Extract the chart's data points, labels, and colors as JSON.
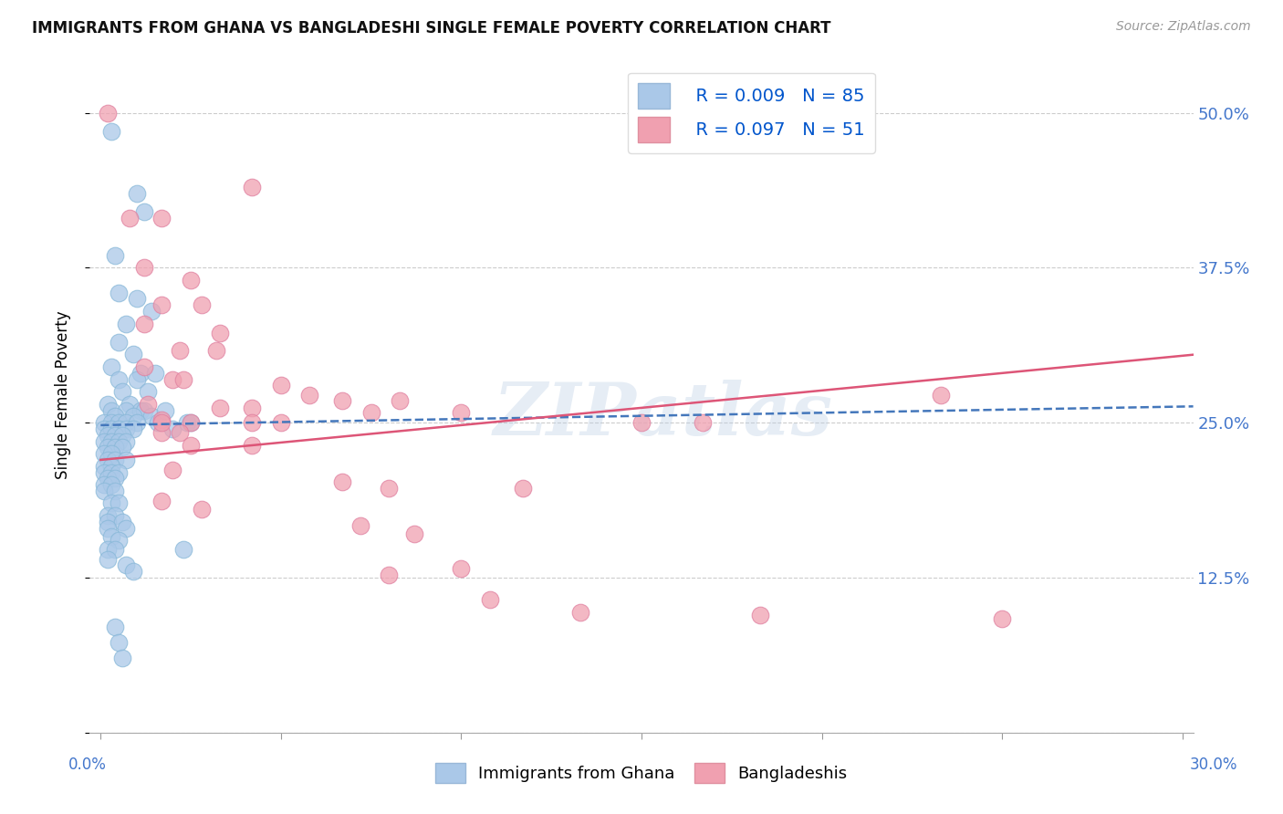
{
  "title": "IMMIGRANTS FROM GHANA VS BANGLADESHI SINGLE FEMALE POVERTY CORRELATION CHART",
  "source": "Source: ZipAtlas.com",
  "ylabel": "Single Female Poverty",
  "yticks": [
    0.0,
    0.125,
    0.25,
    0.375,
    0.5
  ],
  "ytick_labels": [
    "",
    "12.5%",
    "25.0%",
    "37.5%",
    "50.0%"
  ],
  "watermark": "ZIPatlas",
  "ghana_scatter_color": "#aac8e8",
  "bangladesh_scatter_color": "#f0a0b0",
  "ghana_line_color": "#4477bb",
  "bangladesh_line_color": "#dd5577",
  "ghana_intercept": 0.248,
  "ghana_slope": 0.05,
  "bangladesh_intercept": 0.22,
  "bangladesh_slope": 0.28,
  "ghana_points": [
    [
      0.003,
      0.485
    ],
    [
      0.01,
      0.435
    ],
    [
      0.012,
      0.42
    ],
    [
      0.004,
      0.385
    ],
    [
      0.005,
      0.355
    ],
    [
      0.01,
      0.35
    ],
    [
      0.014,
      0.34
    ],
    [
      0.007,
      0.33
    ],
    [
      0.005,
      0.315
    ],
    [
      0.009,
      0.305
    ],
    [
      0.003,
      0.295
    ],
    [
      0.011,
      0.29
    ],
    [
      0.015,
      0.29
    ],
    [
      0.005,
      0.285
    ],
    [
      0.01,
      0.285
    ],
    [
      0.006,
      0.275
    ],
    [
      0.013,
      0.275
    ],
    [
      0.002,
      0.265
    ],
    [
      0.008,
      0.265
    ],
    [
      0.003,
      0.26
    ],
    [
      0.007,
      0.26
    ],
    [
      0.011,
      0.26
    ],
    [
      0.012,
      0.26
    ],
    [
      0.004,
      0.255
    ],
    [
      0.009,
      0.255
    ],
    [
      0.014,
      0.255
    ],
    [
      0.001,
      0.25
    ],
    [
      0.003,
      0.25
    ],
    [
      0.005,
      0.25
    ],
    [
      0.007,
      0.25
    ],
    [
      0.01,
      0.25
    ],
    [
      0.001,
      0.245
    ],
    [
      0.003,
      0.245
    ],
    [
      0.005,
      0.245
    ],
    [
      0.007,
      0.245
    ],
    [
      0.009,
      0.245
    ],
    [
      0.002,
      0.24
    ],
    [
      0.004,
      0.24
    ],
    [
      0.006,
      0.24
    ],
    [
      0.001,
      0.235
    ],
    [
      0.003,
      0.235
    ],
    [
      0.005,
      0.235
    ],
    [
      0.007,
      0.235
    ],
    [
      0.002,
      0.23
    ],
    [
      0.004,
      0.23
    ],
    [
      0.006,
      0.23
    ],
    [
      0.001,
      0.225
    ],
    [
      0.003,
      0.225
    ],
    [
      0.002,
      0.22
    ],
    [
      0.004,
      0.22
    ],
    [
      0.007,
      0.22
    ],
    [
      0.001,
      0.215
    ],
    [
      0.003,
      0.215
    ],
    [
      0.001,
      0.21
    ],
    [
      0.003,
      0.21
    ],
    [
      0.005,
      0.21
    ],
    [
      0.002,
      0.205
    ],
    [
      0.004,
      0.205
    ],
    [
      0.001,
      0.2
    ],
    [
      0.003,
      0.2
    ],
    [
      0.001,
      0.195
    ],
    [
      0.004,
      0.195
    ],
    [
      0.003,
      0.185
    ],
    [
      0.005,
      0.185
    ],
    [
      0.002,
      0.175
    ],
    [
      0.004,
      0.175
    ],
    [
      0.002,
      0.17
    ],
    [
      0.006,
      0.17
    ],
    [
      0.002,
      0.165
    ],
    [
      0.007,
      0.165
    ],
    [
      0.003,
      0.158
    ],
    [
      0.005,
      0.155
    ],
    [
      0.002,
      0.148
    ],
    [
      0.004,
      0.148
    ],
    [
      0.002,
      0.14
    ],
    [
      0.007,
      0.135
    ],
    [
      0.009,
      0.13
    ],
    [
      0.004,
      0.085
    ],
    [
      0.005,
      0.073
    ],
    [
      0.006,
      0.06
    ],
    [
      0.016,
      0.25
    ],
    [
      0.018,
      0.26
    ],
    [
      0.02,
      0.245
    ],
    [
      0.023,
      0.148
    ],
    [
      0.024,
      0.25
    ],
    [
      0.025,
      0.25
    ]
  ],
  "bangladesh_points": [
    [
      0.002,
      0.5
    ],
    [
      0.042,
      0.44
    ],
    [
      0.008,
      0.415
    ],
    [
      0.017,
      0.415
    ],
    [
      0.012,
      0.375
    ],
    [
      0.025,
      0.365
    ],
    [
      0.017,
      0.345
    ],
    [
      0.028,
      0.345
    ],
    [
      0.012,
      0.33
    ],
    [
      0.033,
      0.322
    ],
    [
      0.022,
      0.308
    ],
    [
      0.032,
      0.308
    ],
    [
      0.012,
      0.295
    ],
    [
      0.02,
      0.285
    ],
    [
      0.023,
      0.285
    ],
    [
      0.05,
      0.28
    ],
    [
      0.058,
      0.272
    ],
    [
      0.067,
      0.268
    ],
    [
      0.083,
      0.268
    ],
    [
      0.013,
      0.265
    ],
    [
      0.033,
      0.262
    ],
    [
      0.042,
      0.262
    ],
    [
      0.075,
      0.258
    ],
    [
      0.1,
      0.258
    ],
    [
      0.017,
      0.252
    ],
    [
      0.025,
      0.25
    ],
    [
      0.042,
      0.25
    ],
    [
      0.017,
      0.242
    ],
    [
      0.022,
      0.242
    ],
    [
      0.025,
      0.232
    ],
    [
      0.042,
      0.232
    ],
    [
      0.02,
      0.212
    ],
    [
      0.067,
      0.202
    ],
    [
      0.08,
      0.197
    ],
    [
      0.117,
      0.197
    ],
    [
      0.017,
      0.187
    ],
    [
      0.028,
      0.18
    ],
    [
      0.072,
      0.167
    ],
    [
      0.087,
      0.16
    ],
    [
      0.1,
      0.132
    ],
    [
      0.08,
      0.127
    ],
    [
      0.108,
      0.107
    ],
    [
      0.133,
      0.097
    ],
    [
      0.233,
      0.272
    ],
    [
      0.25,
      0.092
    ],
    [
      0.017,
      0.25
    ],
    [
      0.05,
      0.25
    ],
    [
      0.15,
      0.25
    ],
    [
      0.167,
      0.25
    ],
    [
      0.183,
      0.095
    ]
  ]
}
